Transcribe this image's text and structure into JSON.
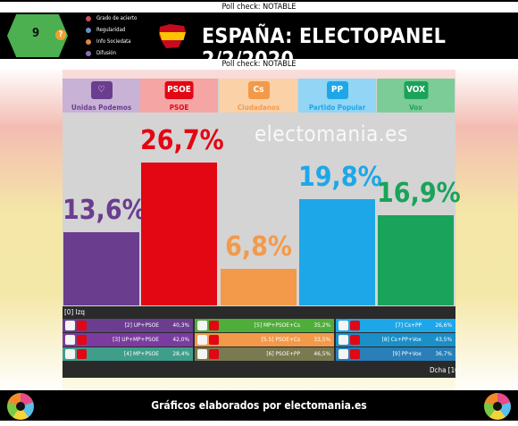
{
  "header": {
    "poll_check_top": "Poll check: NOTABLE",
    "poll_check_bottom": "Poll check: NOTABLE",
    "title": "ESPAÑA: ELECTOPANEL 2/2/2020",
    "score": "9",
    "score_flag": "?",
    "legend": [
      "Grado de acierto",
      "Regularidad",
      "Info Sociedata",
      "Difusión"
    ],
    "legend_colors": [
      "#c9505a",
      "#6a8fc8",
      "#e08a3a",
      "#8a6fb0"
    ]
  },
  "watermark": "electomania.es",
  "chart_data": {
    "type": "bar",
    "title": "ESPAÑA: ELECTOPANEL 2/2/2020",
    "categories": [
      "Unidas Podemos",
      "PSOE",
      "Ciudadanos",
      "Partido Popular",
      "Vox"
    ],
    "values": [
      13.6,
      26.7,
      6.8,
      19.8,
      16.9
    ],
    "value_labels": [
      "13,6%",
      "26,7%",
      "6,8%",
      "19,8%",
      "16,9%"
    ],
    "ylim": [
      0,
      40
    ],
    "colors": [
      "#6a3d8f",
      "#e30613",
      "#f39a4a",
      "#1ea7e8",
      "#1aa35a"
    ],
    "header_colors": [
      "#c8b2d6",
      "#f6a5a5",
      "#fbd1a8",
      "#92d5f4",
      "#7ccc97"
    ],
    "logo_texts": [
      "♡",
      "PSOE",
      "Cs",
      "PP",
      "VOX"
    ]
  },
  "coalitions": {
    "left_label": "[0] Izq",
    "right_label": "Dcha [10]",
    "items": [
      {
        "name": "[2] UP+PSOE",
        "pct": "40,3%"
      },
      {
        "name": "[3] UP+MP+PSOE",
        "pct": "42,0%"
      },
      {
        "name": "[4] MP+PSOE",
        "pct": "28,4%"
      },
      {
        "name": "[5] MP+PSOE+Cs",
        "pct": "35,2%"
      },
      {
        "name": "[5.5] PSOE+Cs",
        "pct": "33,5%"
      },
      {
        "name": "[6] PSOE+PP",
        "pct": "46,5%"
      },
      {
        "name": "[7] Cs+PP",
        "pct": "26,6%"
      },
      {
        "name": "[8] Cs+PP+Vox",
        "pct": "43,5%"
      },
      {
        "name": "[9] PP+Vox",
        "pct": "36,7%"
      }
    ],
    "bg_colors": [
      "#6a3d8f",
      "#7a3d9f",
      "#3f9e8a",
      "#4fae3a",
      "#f39a4a",
      "#7a7a52",
      "#1ea7e8",
      "#1a8fc8",
      "#2a7fb8"
    ]
  },
  "footer": {
    "text": "Gráficos elaborados por electomania.es"
  }
}
